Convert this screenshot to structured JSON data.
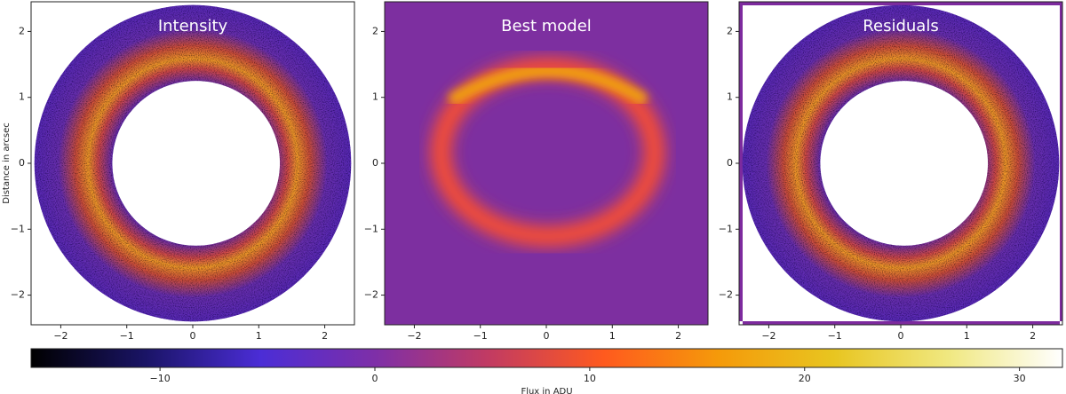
{
  "chart_data": [
    {
      "type": "image",
      "title": "Intensity",
      "ylabel": "Distance in arcsec",
      "xlim": [
        -2.45,
        2.45
      ],
      "ylim": [
        -2.45,
        2.45
      ],
      "xticks": [
        {
          "value": -2,
          "label": "−2"
        },
        {
          "value": -1,
          "label": "−1"
        },
        0,
        1,
        2
      ],
      "yticks": [
        {
          "value": -2,
          "label": "−2"
        },
        {
          "value": -1,
          "label": "−1"
        },
        0,
        1,
        2
      ]
    },
    {
      "type": "image",
      "title": "Best model",
      "xlim": [
        -2.45,
        2.45
      ],
      "ylim": [
        -2.45,
        2.45
      ],
      "xticks": [
        {
          "value": -2,
          "label": "−2"
        },
        {
          "value": -1,
          "label": "−1"
        },
        0,
        1,
        2
      ],
      "yticks": [
        {
          "value": -2,
          "label": "−2"
        },
        {
          "value": -1,
          "label": "−1"
        },
        0,
        1,
        2
      ]
    },
    {
      "type": "image",
      "title": "Residuals",
      "xlim": [
        -2.45,
        2.45
      ],
      "ylim": [
        -2.45,
        2.45
      ],
      "xticks": [
        {
          "value": -2,
          "label": "−2"
        },
        {
          "value": -1,
          "label": "−1"
        },
        0,
        1,
        2
      ],
      "yticks": [
        {
          "value": -2,
          "label": "−2"
        },
        {
          "value": -1,
          "label": "−1"
        },
        0,
        1,
        2
      ]
    },
    {
      "type": "colorbar",
      "xlabel": "Flux in ADU",
      "xlim": [
        -16,
        32
      ],
      "xticks": [
        {
          "value": -10,
          "label": "−10"
        },
        0,
        10,
        20,
        30
      ],
      "colors": [
        "#000000",
        "#1a1466",
        "#4b2dd6",
        "#7e2fa8",
        "#c23b62",
        "#ff5a1e",
        "#f59a0a",
        "#e8c520",
        "#f0e880",
        "#ffffff"
      ]
    }
  ]
}
